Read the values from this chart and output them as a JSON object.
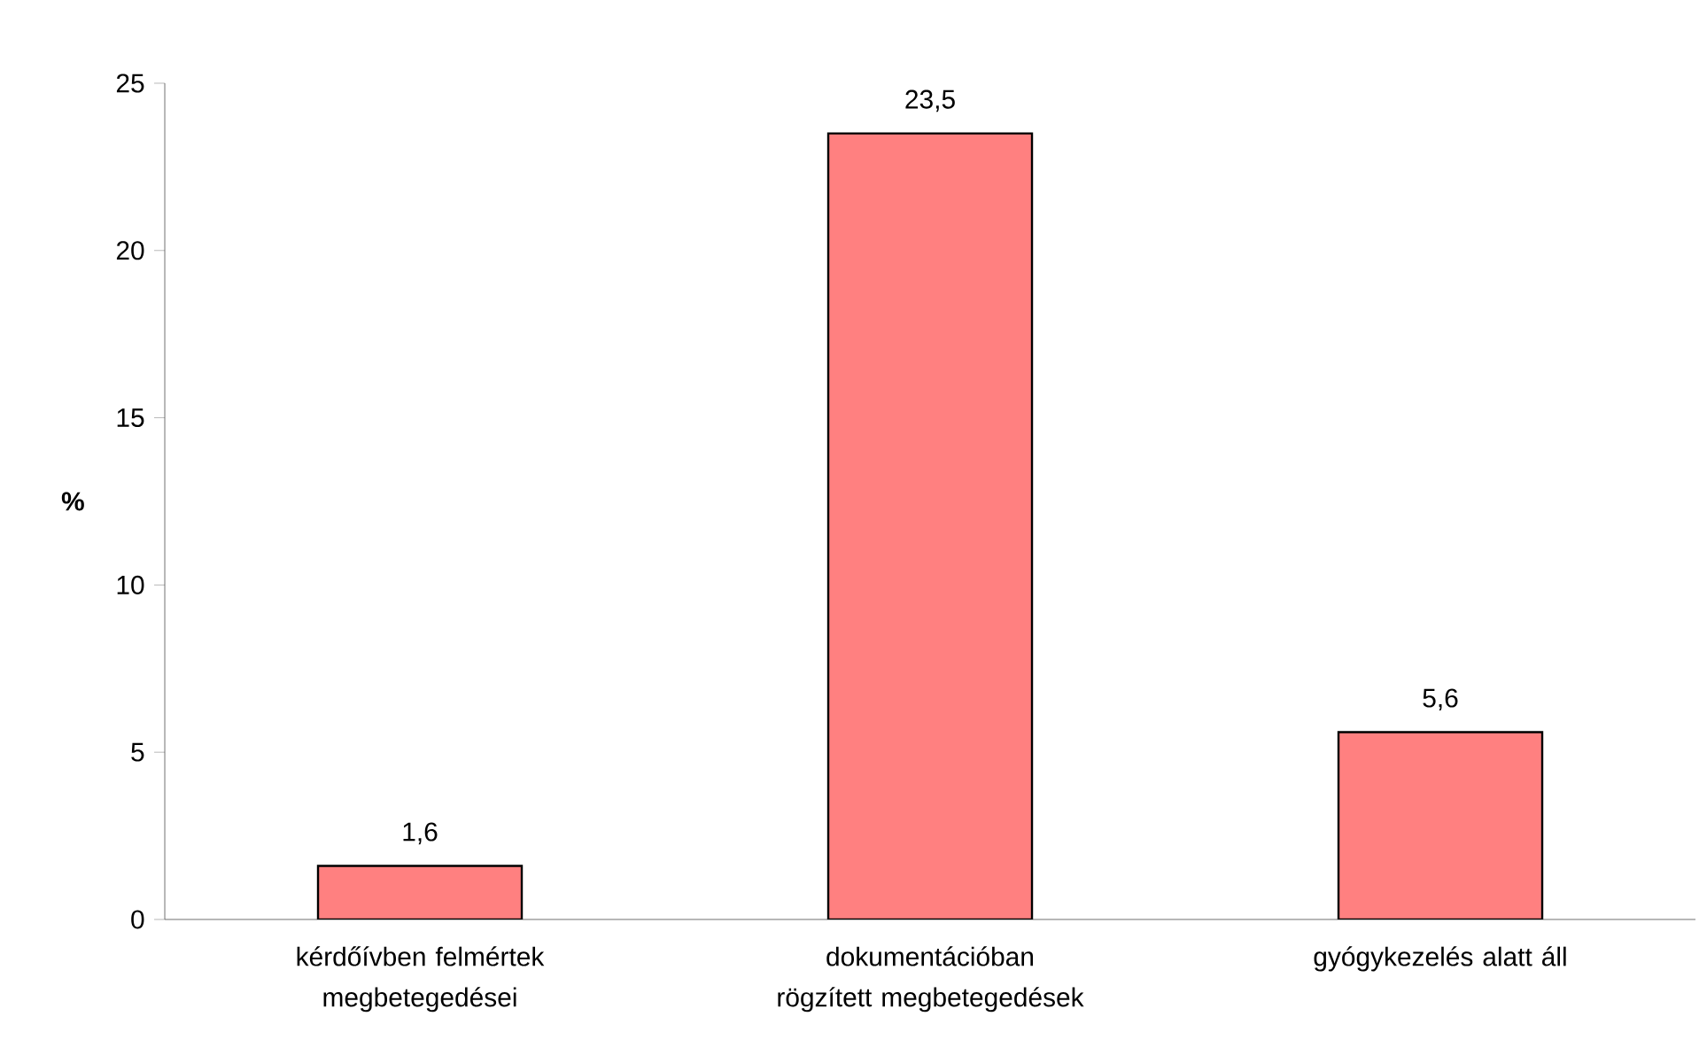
{
  "chart_data": {
    "type": "bar",
    "ylabel": "%",
    "categories": [
      "kérdőívben felmértek megbetegedései",
      "dokumentációban rögzített megbetegedések",
      "gyógykezelés alatt áll"
    ],
    "values": [
      1.6,
      23.5,
      5.6
    ],
    "value_labels": [
      "1,6",
      "23,5",
      "5,6"
    ],
    "color": "#ff8080",
    "ylim": [
      0,
      25
    ],
    "yticks": [
      0,
      5,
      10,
      15,
      20,
      25
    ]
  }
}
